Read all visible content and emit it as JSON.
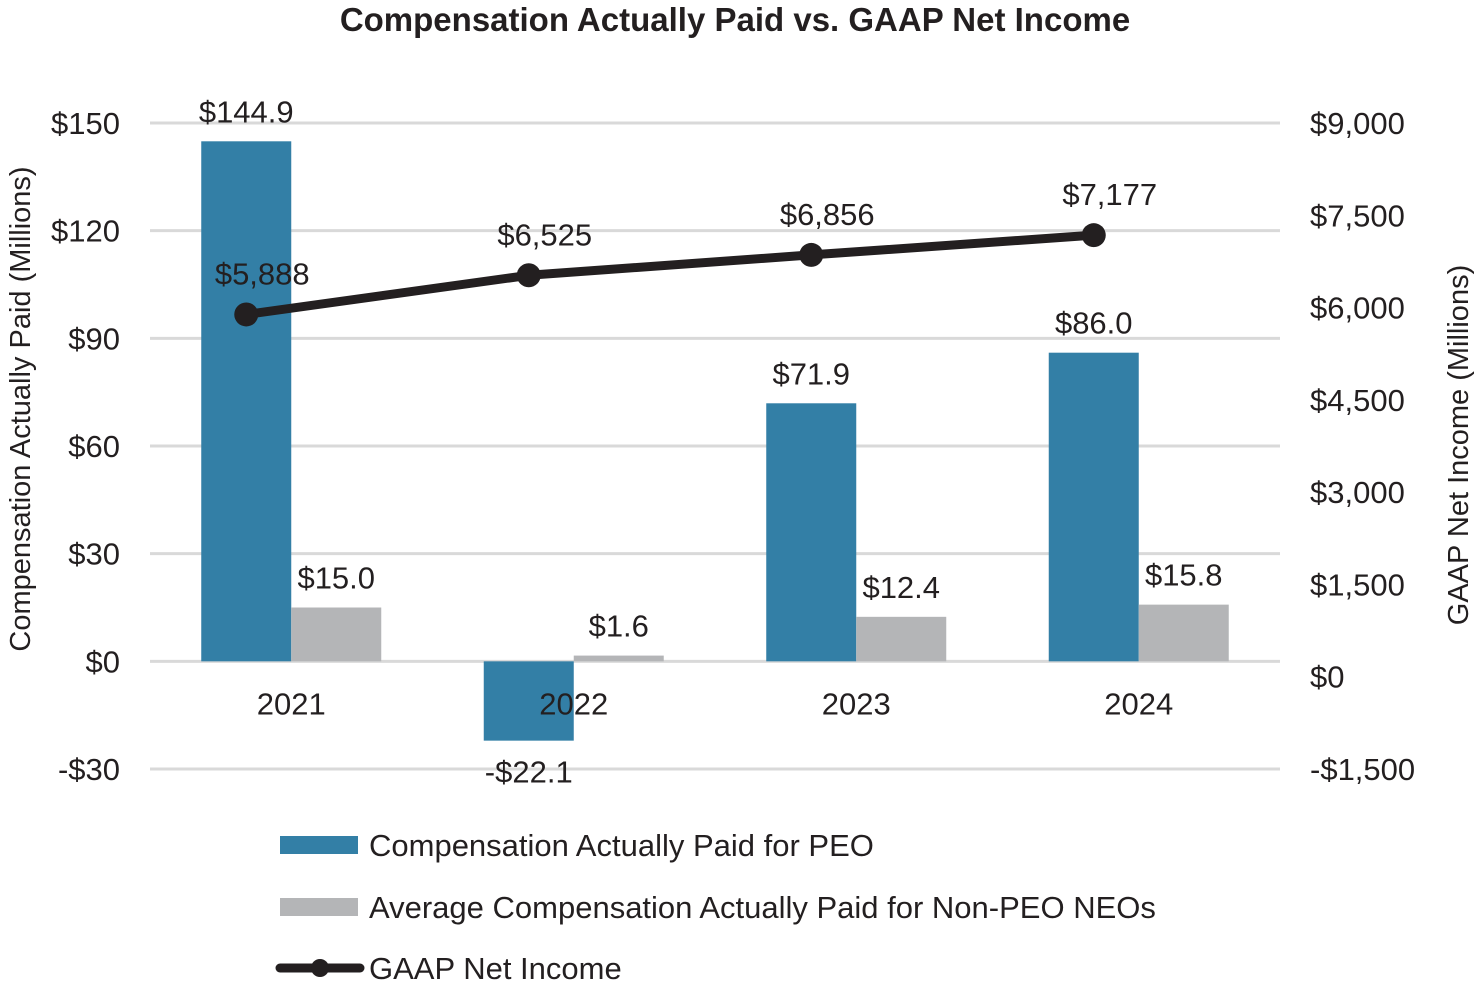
{
  "chart_data": {
    "type": "bar",
    "title": "Compensation Actually Paid vs. GAAP Net Income",
    "categories": [
      "2021",
      "2022",
      "2023",
      "2024"
    ],
    "ylabel": "Compensation Actually Paid (Millions)",
    "y2label": "GAAP Net Income (Millions)",
    "ylim": [
      -30,
      150
    ],
    "y2lim": [
      -1500,
      9000
    ],
    "yticks": [
      -30,
      0,
      30,
      60,
      90,
      120,
      150
    ],
    "ytick_labels": [
      "-$30",
      "$0",
      "$30",
      "$60",
      "$90",
      "$120",
      "$150"
    ],
    "y2ticks": [
      -1500,
      0,
      1500,
      3000,
      4500,
      6000,
      7500,
      9000
    ],
    "y2tick_labels": [
      "-$1,500",
      "$0",
      "$1,500",
      "$3,000",
      "$4,500",
      "$6,000",
      "$7,500",
      "$9,000"
    ],
    "grid": true,
    "legend_position": "bottom",
    "series": [
      {
        "name": "Compensation Actually Paid for PEO",
        "type": "bar",
        "axis": "left",
        "color": "#337fa6",
        "values": [
          144.9,
          -22.1,
          71.9,
          86.0
        ],
        "labels": [
          "$144.9",
          "-$22.1",
          "$71.9",
          "$86.0"
        ]
      },
      {
        "name": "Average Compensation Actually Paid for Non-PEO NEOs",
        "type": "bar",
        "axis": "left",
        "color": "#b4b5b7",
        "values": [
          15.0,
          1.6,
          12.4,
          15.8
        ],
        "labels": [
          "$15.0",
          "$1.6",
          "$12.4",
          "$15.8"
        ]
      },
      {
        "name": "GAAP Net Income",
        "type": "line",
        "axis": "right",
        "color": "#231f20",
        "values": [
          5888,
          6525,
          6856,
          7177
        ],
        "labels": [
          "$5,888",
          "$6,525",
          "$6,856",
          "$7,177"
        ]
      }
    ]
  }
}
